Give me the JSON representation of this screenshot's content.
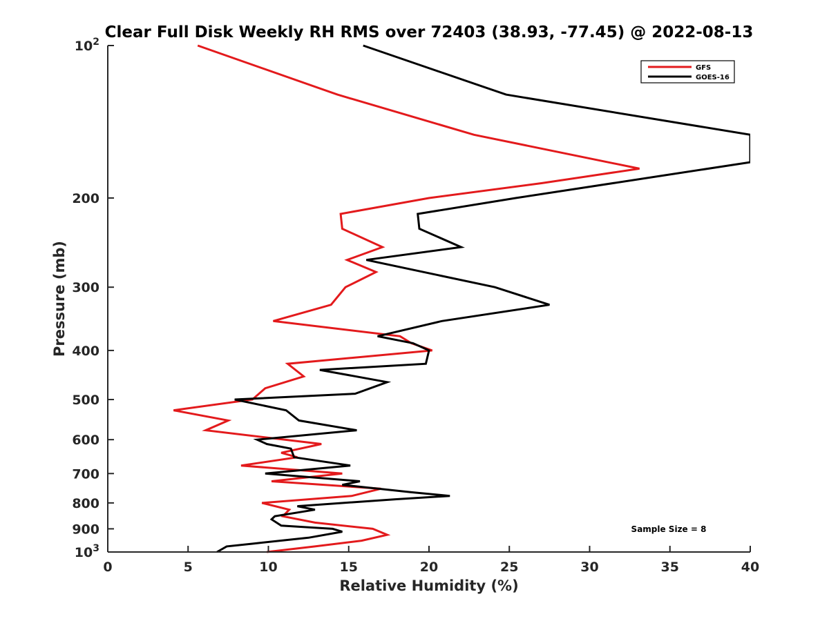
{
  "chart_data": {
    "type": "line",
    "title": "Clear Full Disk Weekly RH RMS over 72403 (38.93, -77.45) @ 2022-08-13",
    "xlabel": "Relative Humidity (%)",
    "ylabel": "Pressure (mb)",
    "xlim": [
      0,
      40
    ],
    "ylim": [
      100,
      1000
    ],
    "y_scale": "log",
    "y_reversed": true,
    "grid": false,
    "legend_position": "top-right",
    "x_ticks": [
      0,
      5,
      10,
      15,
      20,
      25,
      30,
      35,
      40
    ],
    "y_ticks": [
      {
        "value": 100,
        "base": "10",
        "exp": "2"
      },
      {
        "value": 200,
        "label": "200"
      },
      {
        "value": 300,
        "label": "300"
      },
      {
        "value": 400,
        "label": "400"
      },
      {
        "value": 500,
        "label": "500"
      },
      {
        "value": 600,
        "label": "600"
      },
      {
        "value": 700,
        "label": "700"
      },
      {
        "value": 800,
        "label": "800"
      },
      {
        "value": 900,
        "label": "900"
      },
      {
        "value": 1000,
        "base": "10",
        "exp": "3"
      }
    ],
    "series": [
      {
        "name": "GFS",
        "color": "#e31a1c",
        "points": [
          [
            5.6,
            100
          ],
          [
            14.3,
            125
          ],
          [
            22.8,
            150
          ],
          [
            33.1,
            175
          ],
          [
            27.0,
            187
          ],
          [
            20.0,
            200
          ],
          [
            14.5,
            215
          ],
          [
            14.6,
            230
          ],
          [
            17.1,
            250
          ],
          [
            14.9,
            265
          ],
          [
            16.7,
            280
          ],
          [
            14.8,
            300
          ],
          [
            13.9,
            325
          ],
          [
            10.3,
            350
          ],
          [
            18.2,
            375
          ],
          [
            18.9,
            387
          ],
          [
            20.2,
            400
          ],
          [
            11.2,
            425
          ],
          [
            12.2,
            450
          ],
          [
            9.8,
            475
          ],
          [
            9.0,
            500
          ],
          [
            4.1,
            525
          ],
          [
            7.5,
            550
          ],
          [
            6.1,
            575
          ],
          [
            13.3,
            612
          ],
          [
            10.8,
            637
          ],
          [
            11.8,
            650
          ],
          [
            8.3,
            675
          ],
          [
            14.6,
            700
          ],
          [
            10.2,
            725
          ],
          [
            17.0,
            750
          ],
          [
            15.2,
            775
          ],
          [
            9.6,
            800
          ],
          [
            11.3,
            825
          ],
          [
            10.9,
            850
          ],
          [
            12.9,
            875
          ],
          [
            16.5,
            900
          ],
          [
            17.4,
            925
          ],
          [
            15.8,
            950
          ],
          [
            12.9,
            975
          ],
          [
            9.9,
            1000
          ]
        ]
      },
      {
        "name": "GOES-16",
        "color": "#000000",
        "points": [
          [
            15.9,
            100
          ],
          [
            24.8,
            125
          ],
          [
            40.0,
            150
          ],
          [
            40.0,
            170
          ],
          [
            25.4,
            200
          ],
          [
            19.3,
            215
          ],
          [
            19.4,
            230
          ],
          [
            22.0,
            250
          ],
          [
            16.1,
            265
          ],
          [
            24.1,
            300
          ],
          [
            27.5,
            325
          ],
          [
            20.8,
            350
          ],
          [
            16.8,
            375
          ],
          [
            19.0,
            387
          ],
          [
            20.0,
            400
          ],
          [
            19.8,
            425
          ],
          [
            13.2,
            437
          ],
          [
            17.4,
            462
          ],
          [
            15.4,
            487
          ],
          [
            7.9,
            500
          ],
          [
            11.1,
            525
          ],
          [
            11.9,
            550
          ],
          [
            15.5,
            575
          ],
          [
            9.3,
            600
          ],
          [
            9.9,
            612
          ],
          [
            11.4,
            625
          ],
          [
            11.6,
            650
          ],
          [
            15.1,
            675
          ],
          [
            9.8,
            700
          ],
          [
            15.7,
            725
          ],
          [
            14.6,
            737
          ],
          [
            18.9,
            762
          ],
          [
            21.3,
            775
          ],
          [
            17.9,
            787
          ],
          [
            11.8,
            812
          ],
          [
            12.9,
            825
          ],
          [
            10.4,
            850
          ],
          [
            10.2,
            862
          ],
          [
            10.8,
            887
          ],
          [
            14.0,
            900
          ],
          [
            14.6,
            912
          ],
          [
            12.5,
            937
          ],
          [
            9.1,
            962
          ],
          [
            7.4,
            975
          ],
          [
            6.8,
            1000
          ]
        ]
      }
    ],
    "legend": [
      {
        "label": "GFS",
        "color": "#e31a1c"
      },
      {
        "label": "GOES-16",
        "color": "#000000"
      }
    ],
    "annotation": "Sample Size = 8"
  }
}
